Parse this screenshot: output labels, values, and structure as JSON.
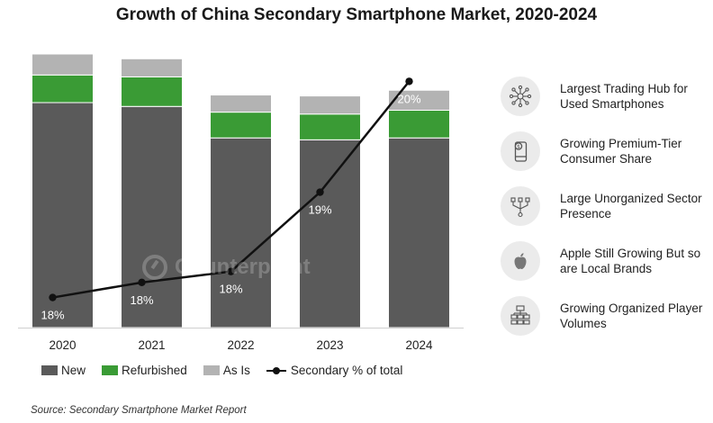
{
  "title": "Growth of China Secondary Smartphone Market, 2020-2024",
  "chart_data": {
    "type": "bar",
    "stacked": true,
    "title": "Growth of China Secondary Smartphone Market, 2020-2024",
    "categories": [
      "2020",
      "2021",
      "2022",
      "2023",
      "2024"
    ],
    "series": [
      {
        "name": "New",
        "values": [
          236,
          232,
          199,
          197,
          199
        ],
        "color": "#5a5a5a"
      },
      {
        "name": "Refurbished",
        "values": [
          29,
          31,
          27,
          27,
          29
        ],
        "color": "#3a9b35"
      },
      {
        "name": "As Is",
        "values": [
          22,
          19,
          18,
          19,
          21
        ],
        "color": "#b3b3b3"
      }
    ],
    "line": {
      "name": "Secondary % of total",
      "values": [
        18,
        18,
        18,
        19,
        20
      ],
      "labels": [
        "18%",
        "18%",
        "18%",
        "19%",
        "20%"
      ],
      "plot_positions": [
        12.2,
        13.3,
        14.1,
        19.9,
        28.0
      ],
      "color": "#111111"
    },
    "ylim": [
      0,
      287
    ],
    "line_ylim": [
      10,
      30
    ],
    "grid": false,
    "legend_position": "bottom",
    "xlabel": "",
    "ylabel": ""
  },
  "legend": [
    {
      "label": "New",
      "kind": "swatch",
      "color": "#5a5a5a"
    },
    {
      "label": "Refurbished",
      "kind": "swatch",
      "color": "#3a9b35"
    },
    {
      "label": "As Is",
      "kind": "swatch",
      "color": "#b3b3b3"
    },
    {
      "label": "Secondary % of total",
      "kind": "line",
      "color": "#111111"
    }
  ],
  "watermark": "Counterpoint",
  "factors": [
    {
      "label": "Largest Trading Hub for Used Smartphones",
      "icon": "network-icon"
    },
    {
      "label": "Growing Premium-Tier Consumer Share",
      "icon": "phone-dollar-icon"
    },
    {
      "label": "Large Unorganized Sector Presence",
      "icon": "scattered-nodes-icon"
    },
    {
      "label": "Apple Still Growing But so are Local Brands",
      "icon": "apple-icon"
    },
    {
      "label": "Growing Organized Player Volumes",
      "icon": "org-chart-icon"
    }
  ],
  "source": "Source: Secondary Smartphone Market Report"
}
